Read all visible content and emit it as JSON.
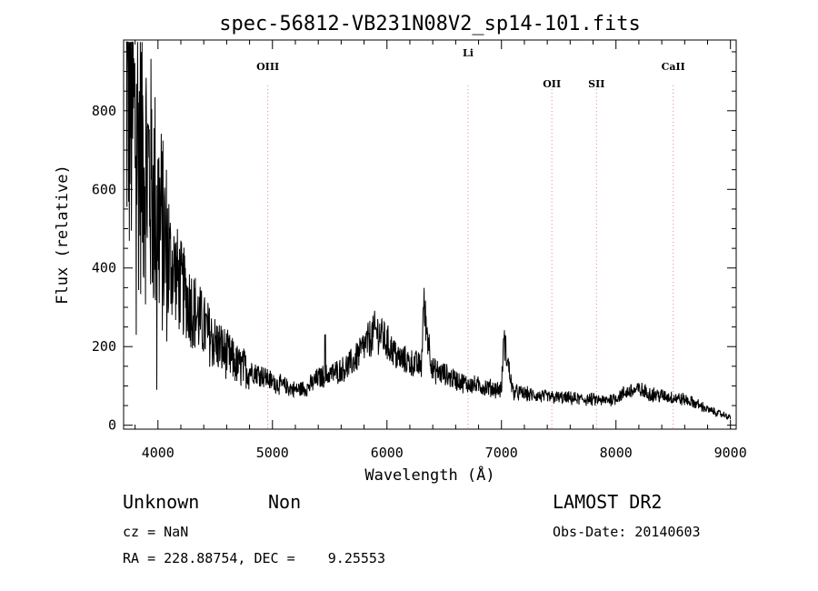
{
  "chart_data": {
    "type": "line",
    "title": "spec-56812-VB231N08V2_sp14-101.fits",
    "xlabel": "Wavelength (Å)",
    "ylabel": "Flux (relative)",
    "xlim": [
      3700,
      9050
    ],
    "ylim": [
      -10,
      980
    ],
    "x_ticks": [
      4000,
      5000,
      6000,
      7000,
      8000,
      9000
    ],
    "y_ticks": [
      0,
      200,
      400,
      600,
      800
    ],
    "grid": false,
    "series": [
      {
        "x": [
          3720,
          3750,
          3780,
          3810,
          3840,
          3870,
          3900,
          3950,
          4000,
          4050,
          4100,
          4150,
          4200,
          4300,
          4400,
          4500,
          4600,
          4700,
          4800,
          4900,
          5000,
          5100,
          5200,
          5300,
          5400,
          5500,
          5600,
          5700,
          5800,
          5900,
          5950,
          6000,
          6100,
          6200,
          6300,
          6320,
          6400,
          6500,
          6600,
          6700,
          6800,
          6900,
          7000,
          7020,
          7100,
          7200,
          7300,
          7400,
          7500,
          7600,
          7700,
          7800,
          7900,
          8000,
          8100,
          8200,
          8300,
          8400,
          8500,
          8600,
          8700,
          8800,
          8850,
          8900,
          8950,
          9000
        ],
        "y": [
          880,
          820,
          780,
          740,
          720,
          700,
          660,
          600,
          540,
          470,
          420,
          390,
          350,
          300,
          250,
          210,
          180,
          150,
          140,
          130,
          110,
          100,
          90,
          95,
          120,
          130,
          140,
          160,
          200,
          240,
          230,
          210,
          170,
          160,
          150,
          300,
          140,
          130,
          115,
          105,
          100,
          95,
          90,
          220,
          85,
          80,
          75,
          72,
          70,
          68,
          66,
          65,
          62,
          70,
          85,
          90,
          80,
          75,
          70,
          65,
          55,
          40,
          35,
          30,
          25,
          20
        ]
      }
    ],
    "annotations": [
      {
        "label": "OIII",
        "x": 4959
      },
      {
        "label": "Li",
        "x": 6708
      },
      {
        "label": "OII",
        "x": 7440
      },
      {
        "label": "SII",
        "x": 7830
      },
      {
        "label": "CaII",
        "x": 8500
      }
    ]
  },
  "footer": {
    "class_label": "Unknown",
    "subclass_label": "Non",
    "survey_label": "LAMOST DR2",
    "cz_text": "cz = NaN",
    "obs_date_text": "Obs-Date: 20140603",
    "coords_text": "RA = 228.88754, DEC =    9.25553"
  }
}
